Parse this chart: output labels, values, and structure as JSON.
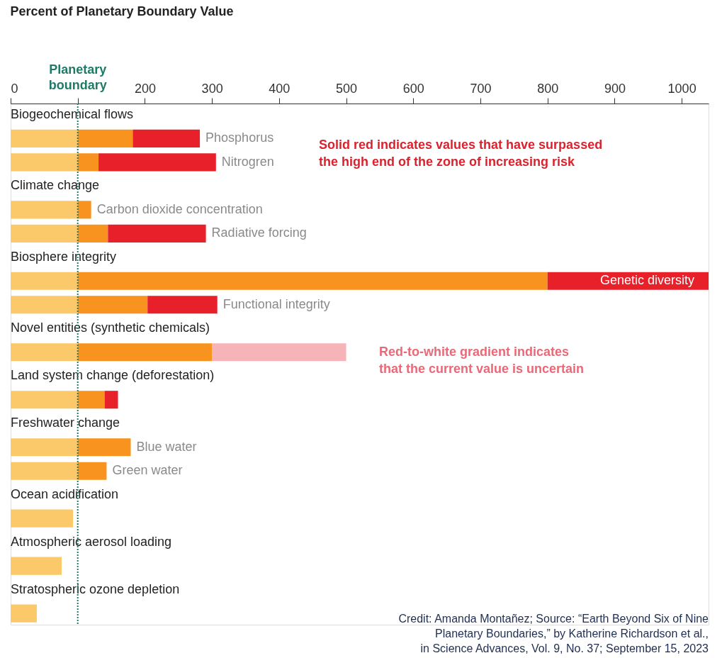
{
  "chart_data": {
    "type": "bar",
    "orientation": "horizontal",
    "stacked": true,
    "title": "Percent of Planetary Boundary Value",
    "categories": [
      "Biogeochemical flows",
      "Phosphorus",
      "Nitrogren",
      "Climate change",
      "Carbon dioxide concentration",
      "Radiative forcing",
      "Biosphere integrity",
      "Genetic diversity",
      "Functional integrity",
      "Novel entities (synthetic chemicals)",
      null,
      "Land system change (deforestation)",
      null,
      "Freshwater change",
      "Blue water",
      "Green water",
      "Ocean acidification",
      null,
      "Atmospheric aerosol loading",
      null,
      "Stratospheric ozone depletion",
      null
    ],
    "series": [
      {
        "color": "#fbc96a",
        "values": [
          null,
          100,
          100,
          null,
          100,
          100,
          null,
          100,
          100,
          null,
          100,
          null,
          100,
          null,
          100,
          100,
          null,
          93,
          null,
          76,
          null,
          39
        ]
      },
      {
        "color": "#f7931e",
        "values": [
          null,
          82,
          31,
          null,
          20,
          45,
          null,
          700,
          104,
          null,
          200,
          null,
          40,
          null,
          79,
          43,
          null,
          null,
          null,
          null,
          null,
          null
        ]
      },
      {
        "color": "#e8202a",
        "values": [
          null,
          100,
          175,
          null,
          null,
          146,
          null,
          240,
          104,
          null,
          null,
          null,
          20,
          null,
          null,
          null,
          null,
          null,
          null,
          null,
          null,
          null
        ]
      },
      {
        "color": "#f6b3b8",
        "values": [
          null,
          null,
          null,
          null,
          null,
          null,
          null,
          null,
          null,
          null,
          200,
          null,
          null,
          null,
          null,
          null,
          null,
          null,
          null,
          null,
          null,
          null
        ]
      }
    ],
    "xlim": [
      0,
      1040
    ],
    "xticks": [
      0,
      {
        "value": 100,
        "label": null
      },
      200,
      300,
      400,
      500,
      600,
      700,
      800,
      900,
      1000
    ],
    "grid": false,
    "ref_lines": [
      {
        "axis": "x",
        "value": 100,
        "label": "Planetary boundary",
        "color": "#1f7a68",
        "line_style": "dotted"
      }
    ],
    "annotations": [
      "Solid red indicates values that have surpassed\nthe high end of the zone of increasing risk",
      "Red-to-white gradient indicates\nthat the current value is uncertain",
      "Credit: Amanda Montañez; Source: “Earth Beyond Six of Nine\nPlanetary Boundaries,” by Katherine Richardson et al.,\nin Science Advances, Vol. 9, No. 37; September 15, 2023"
    ]
  }
}
